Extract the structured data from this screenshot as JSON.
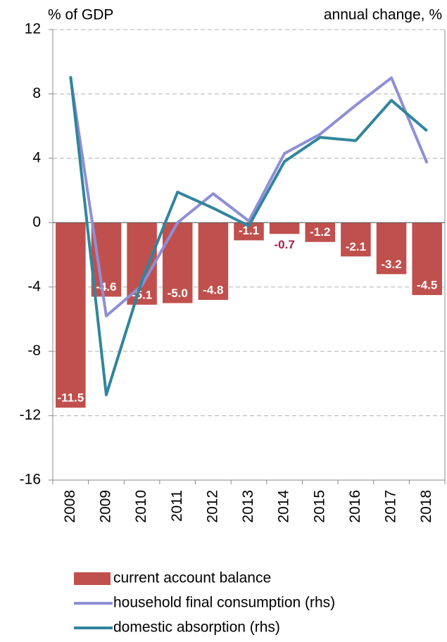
{
  "chart_data": {
    "type": "bar_line",
    "ylabel": "% of GDP",
    "y2label": "annual change, %",
    "categories": [
      "2008",
      "2009",
      "2010",
      "2011",
      "2012",
      "2013",
      "2014",
      "2015",
      "2016",
      "2017",
      "2018"
    ],
    "ylim": [
      -16,
      12
    ],
    "yticks": [
      12,
      8,
      4,
      0,
      -4,
      -8,
      -12,
      -16
    ],
    "y2lim": [
      -16,
      12
    ],
    "grid": true,
    "series": [
      {
        "name": "current account balance",
        "type": "bar",
        "color": "#c0504d",
        "values": [
          -11.5,
          -4.6,
          -5.1,
          -5.0,
          -4.8,
          -1.1,
          -0.7,
          -1.2,
          -2.1,
          -3.2,
          -4.5
        ],
        "value_labels": [
          "-11.5",
          "-4.6",
          "-5.1",
          "-5.0",
          "-4.8",
          "-1.1",
          "-0.7",
          "-1.2",
          "-2.1",
          "-3.2",
          "-4.5"
        ]
      },
      {
        "name": "household final consumption (rhs)",
        "type": "line",
        "axis": "y2",
        "color": "#8e8fd6",
        "values": [
          9.0,
          -5.8,
          -3.9,
          0.0,
          1.8,
          0.1,
          4.3,
          5.5,
          7.3,
          9.0,
          3.7
        ]
      },
      {
        "name": "domestic absorption (rhs)",
        "type": "line",
        "axis": "y2",
        "color": "#31859c",
        "values": [
          9.1,
          -10.7,
          -3.6,
          1.9,
          0.9,
          -0.2,
          3.8,
          5.3,
          5.1,
          7.6,
          5.7
        ]
      }
    ]
  }
}
